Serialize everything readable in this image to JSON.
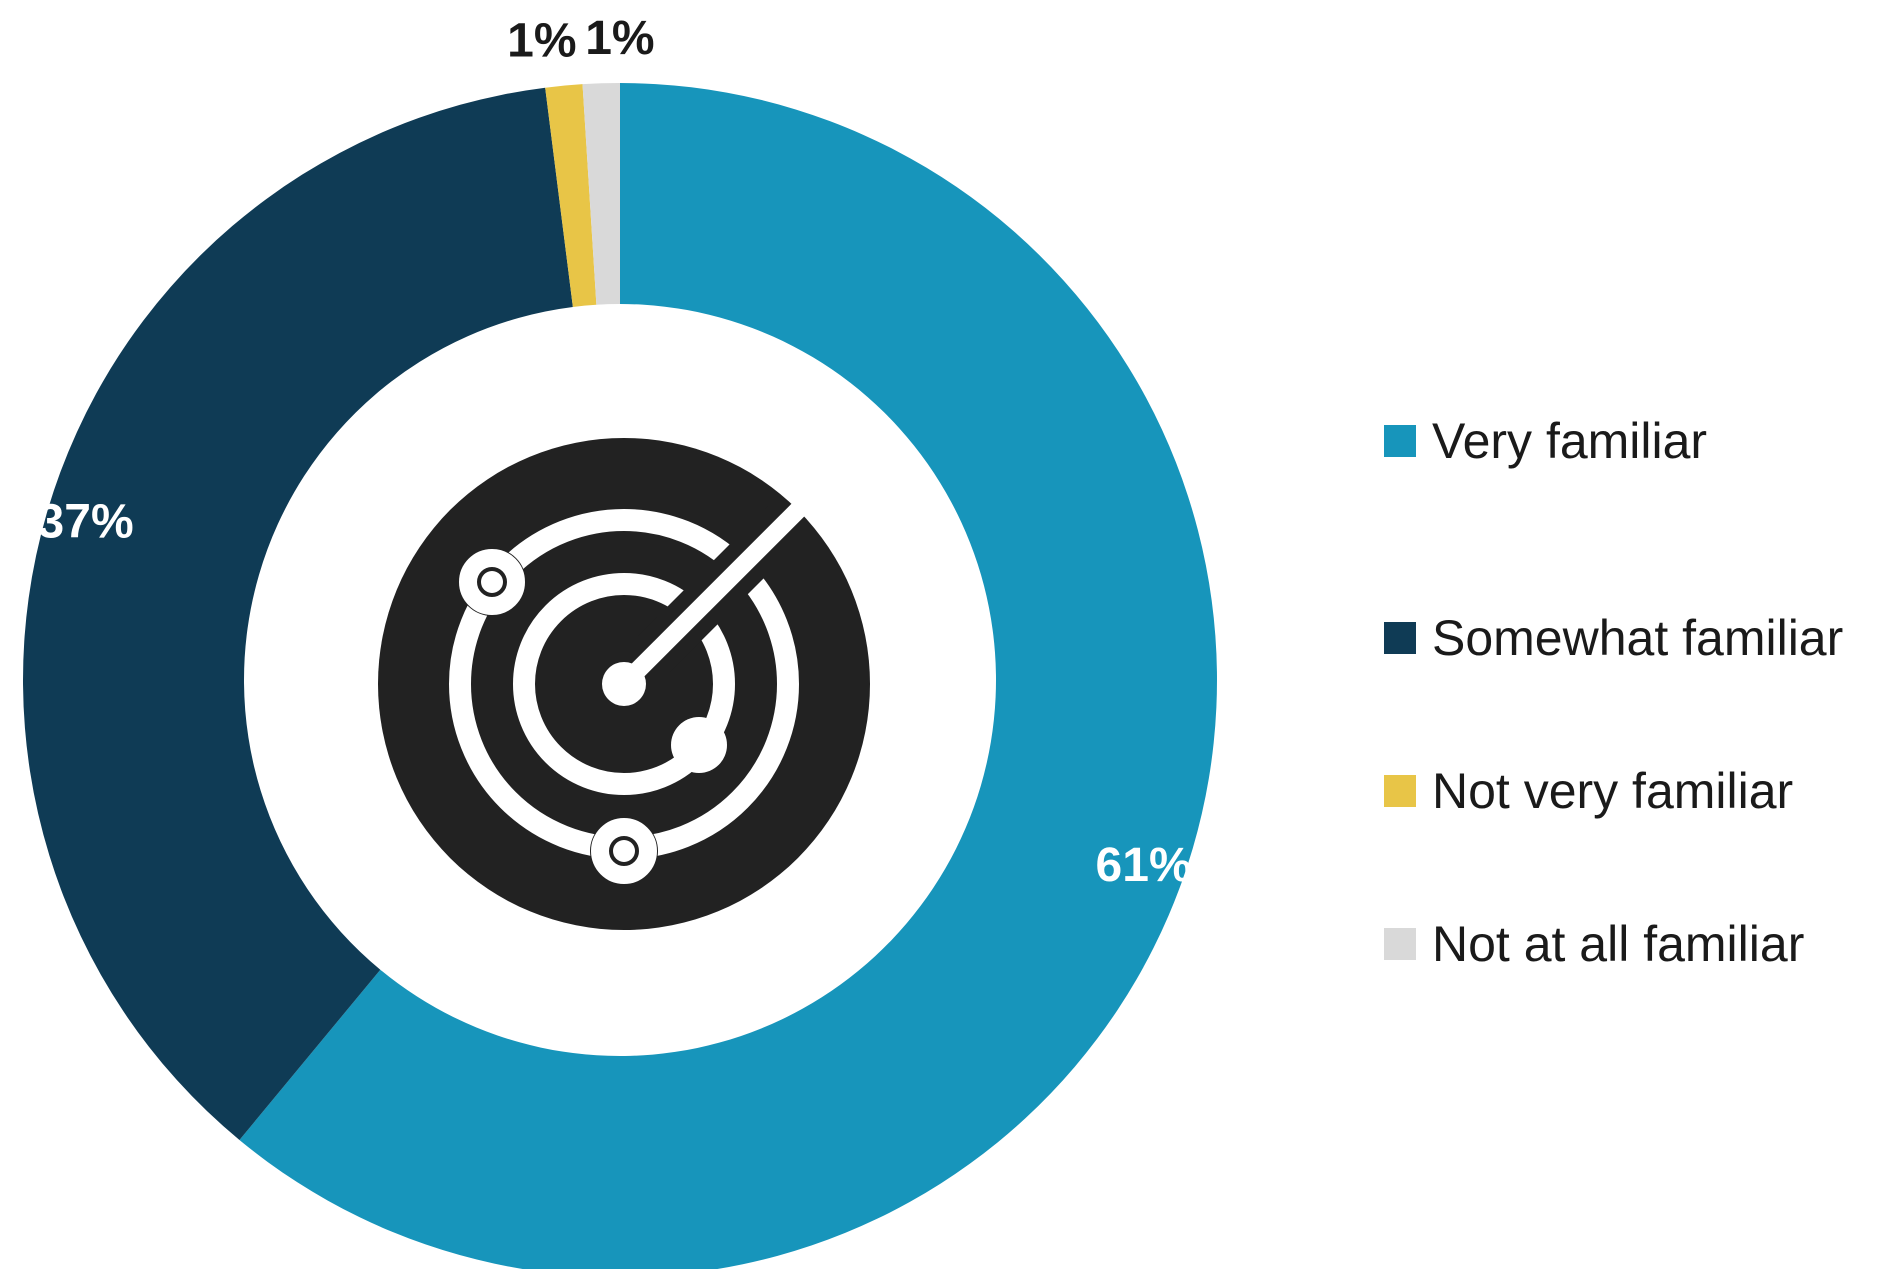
{
  "chart_data": {
    "type": "pie",
    "title": "",
    "legend_position": "right",
    "center_icon": "radar-icon",
    "slices": [
      {
        "label": "Very familiar",
        "value": 61,
        "display": "61%",
        "color": "#1795bb"
      },
      {
        "label": "Somewhat familiar",
        "value": 37,
        "display": "37%",
        "color": "#0f3b55"
      },
      {
        "label": "Not very familiar",
        "value": 1,
        "display": "1%",
        "color": "#e8c547"
      },
      {
        "label": "Not at all familiar",
        "value": 1,
        "display": "1%",
        "color": "#d9d9d9"
      }
    ]
  }
}
